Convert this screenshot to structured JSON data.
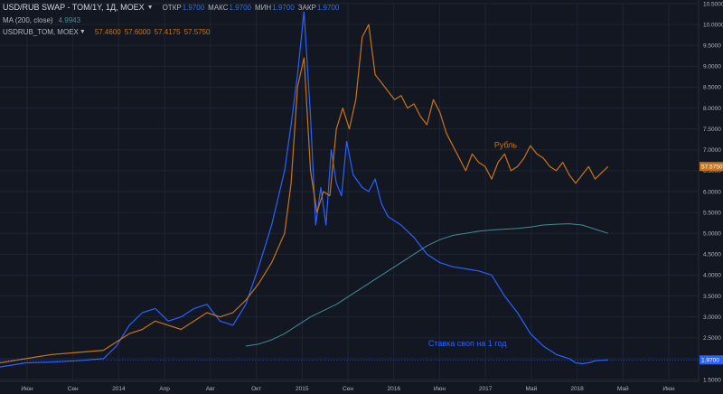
{
  "header": {
    "symbol_title": "USD/RUB SWAP - TOM/1Y, 1Д, MOEX",
    "ohlc": [
      {
        "label": "ОТКР",
        "value": "1.9700"
      },
      {
        "label": "МАКС",
        "value": "1.9700"
      },
      {
        "label": "МИН",
        "value": "1.9700"
      },
      {
        "label": "ЗАКР",
        "value": "1.9700"
      }
    ],
    "ma_title": "MA (200, close)",
    "ma_value": "4.9943",
    "compare_title": "USDRUB_TOM, MOEX",
    "compare_values": [
      "57.4600",
      "57.6000",
      "57.4175",
      "57.5750"
    ]
  },
  "colors": {
    "background": "#131722",
    "swap": "#2962ff",
    "ma": "#3f8c99",
    "rub": "#c8741a",
    "grid": "#1e2433",
    "text": "#b2b5be"
  },
  "chart_data": {
    "type": "line",
    "x_labels": [
      "Июн",
      "Сен",
      "2014",
      "Апр",
      "Авг",
      "Окт",
      "2015",
      "Сен",
      "2016",
      "Июн",
      "2017",
      "Май",
      "2018",
      "Май",
      "Июн"
    ],
    "y_ticks": [
      "1.5000",
      "2.0000",
      "2.5000",
      "3.0000",
      "3.5000",
      "4.0000",
      "4.5000",
      "5.0000",
      "5.5000",
      "6.0000",
      "6.5000",
      "7.0000",
      "7.5000",
      "8.0000",
      "8.5000",
      "9.0000",
      "9.5000",
      "10.0000",
      "10.5000"
    ],
    "ylim": [
      1.5,
      10.5
    ],
    "xlim": [
      0,
      54
    ],
    "annotations": [
      {
        "text": "Рубль",
        "series": "rub",
        "x": 38.2,
        "y": 7.05
      },
      {
        "text": "Ставка своп на 1 год",
        "series": "swap",
        "x": 33.1,
        "y": 2.3
      }
    ],
    "last_value_badges": {
      "swap": "1.9700",
      "rub": "57.5750"
    },
    "series": [
      {
        "id": "swap",
        "x": [
          0,
          2,
          4,
          6,
          8,
          9,
          10,
          11,
          12,
          13,
          14,
          15,
          16,
          17,
          18,
          19,
          20,
          21,
          22,
          22.5,
          23,
          23.5,
          24,
          24.4,
          24.8,
          25.2,
          25.6,
          26,
          26.4,
          26.8,
          27.3,
          28,
          28.5,
          29,
          29.5,
          30,
          31,
          32,
          33,
          34,
          35,
          36,
          37,
          38,
          39,
          40,
          41,
          42,
          43,
          44,
          44.5,
          45,
          45.5,
          46,
          47
        ],
        "y": [
          1.8,
          1.9,
          1.92,
          1.95,
          2.0,
          2.3,
          2.8,
          3.1,
          3.2,
          2.9,
          3.0,
          3.2,
          3.3,
          2.9,
          2.8,
          3.3,
          4.2,
          5.2,
          6.5,
          7.6,
          8.8,
          10.3,
          7.8,
          5.2,
          6.1,
          5.2,
          7.0,
          6.2,
          5.9,
          7.2,
          6.4,
          6.1,
          6.0,
          6.3,
          5.7,
          5.4,
          5.2,
          4.9,
          4.5,
          4.3,
          4.2,
          4.15,
          4.1,
          4.0,
          3.5,
          3.1,
          2.6,
          2.3,
          2.1,
          2.0,
          1.9,
          1.88,
          1.9,
          1.95,
          1.97
        ]
      },
      {
        "id": "ma",
        "x": [
          19,
          20,
          21,
          22,
          23,
          24,
          25,
          26,
          27,
          28,
          29,
          30,
          31,
          32,
          33,
          34,
          35,
          36,
          37,
          38,
          39,
          40,
          41,
          42,
          43,
          44,
          45,
          46,
          47
        ],
        "y": [
          2.3,
          2.35,
          2.45,
          2.6,
          2.8,
          3.0,
          3.15,
          3.3,
          3.5,
          3.7,
          3.9,
          4.1,
          4.3,
          4.5,
          4.7,
          4.85,
          4.95,
          5.0,
          5.05,
          5.08,
          5.1,
          5.12,
          5.15,
          5.2,
          5.22,
          5.23,
          5.2,
          5.1,
          5.0
        ]
      },
      {
        "id": "rub",
        "x": [
          0,
          2,
          4,
          6,
          8,
          9,
          10,
          11,
          12,
          13,
          14,
          15,
          16,
          17,
          18,
          19,
          20,
          21,
          22,
          22.5,
          23,
          23.5,
          24,
          24.5,
          25,
          25.5,
          26,
          26.5,
          27,
          27.5,
          28,
          28.5,
          29,
          29.5,
          30,
          30.5,
          31,
          31.5,
          32,
          32.5,
          33,
          33.5,
          34,
          34.5,
          35,
          35.5,
          36,
          36.5,
          37,
          37.5,
          38,
          38.5,
          39,
          39.5,
          40,
          40.5,
          41,
          41.5,
          42,
          42.5,
          43,
          43.5,
          44,
          44.5,
          45,
          45.5,
          46,
          46.5,
          47
        ],
        "y": [
          1.9,
          2.0,
          2.1,
          2.15,
          2.2,
          2.4,
          2.6,
          2.7,
          2.9,
          2.8,
          2.7,
          2.9,
          3.1,
          3.0,
          3.1,
          3.4,
          3.8,
          4.3,
          5.0,
          6.2,
          8.5,
          9.2,
          6.5,
          5.5,
          6.0,
          5.9,
          7.5,
          8.0,
          7.5,
          8.2,
          9.7,
          10.0,
          8.8,
          8.6,
          8.4,
          8.2,
          8.3,
          8.0,
          8.1,
          7.8,
          7.6,
          8.2,
          7.9,
          7.4,
          7.1,
          6.8,
          6.5,
          6.9,
          6.7,
          6.6,
          6.3,
          6.7,
          6.9,
          6.5,
          6.6,
          6.8,
          7.1,
          6.9,
          6.8,
          6.6,
          6.5,
          6.7,
          6.4,
          6.2,
          6.4,
          6.6,
          6.3,
          6.45,
          6.6
        ]
      }
    ]
  }
}
